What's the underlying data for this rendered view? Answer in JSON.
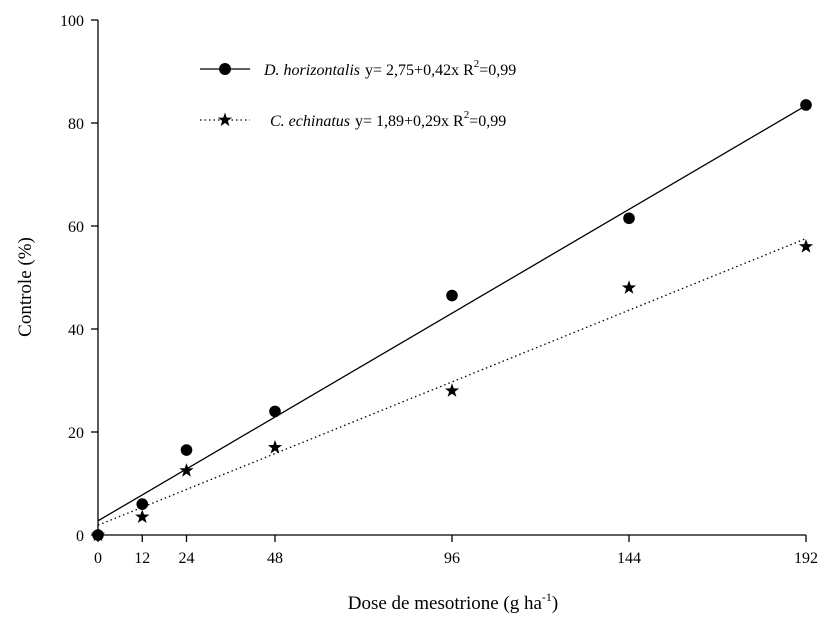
{
  "chart_data": {
    "type": "scatter",
    "xlabel": "Dose de mesotrione (g ha",
    "xlabel_sup": "-1",
    "xlabel_tail": ")",
    "ylabel": "Controle (%)",
    "xlim": [
      0,
      192
    ],
    "ylim": [
      0,
      100
    ],
    "xticks": [
      0,
      12,
      24,
      48,
      96,
      144,
      192
    ],
    "yticks": [
      0,
      20,
      40,
      60,
      80,
      100
    ],
    "grid": false,
    "legend_position": "top-left",
    "series": [
      {
        "name": "D. horizontalis",
        "equation": "y= 2,75+0,42x R",
        "r2_sup": "2",
        "r2_value": "=0,99",
        "marker": "circle",
        "line_style": "solid",
        "fit": {
          "intercept": 2.75,
          "slope": 0.42
        },
        "x": [
          0,
          12,
          24,
          48,
          96,
          144,
          192
        ],
        "y": [
          0,
          6,
          16.5,
          24,
          46.5,
          61.5,
          83.5
        ]
      },
      {
        "name": "C. echinatus",
        "equation": "y= 1,89+0,29x R",
        "r2_sup": "2",
        "r2_value": "=0,99",
        "marker": "star",
        "line_style": "dotted",
        "fit": {
          "intercept": 1.89,
          "slope": 0.29
        },
        "x": [
          0,
          12,
          24,
          48,
          96,
          144,
          192
        ],
        "y": [
          0,
          3.5,
          12.5,
          17,
          28,
          48,
          56
        ]
      }
    ],
    "colors": {
      "line": "#000000",
      "marker": "#000000"
    }
  }
}
